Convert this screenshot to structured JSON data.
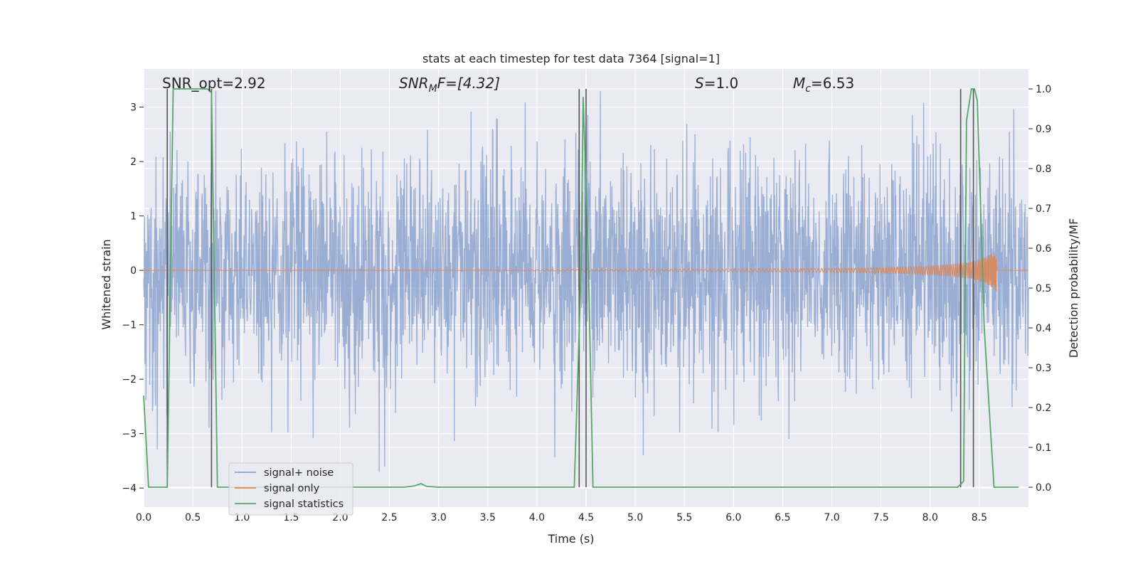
{
  "chart_data": {
    "type": "line",
    "title": "stats at each timestep for test data 7364 [signal=1]",
    "xlabel": "Time (s)",
    "ylabel_left": "Whitened strain",
    "ylabel_right": "Detection probability/MF",
    "xlim": [
      0.0,
      9.0
    ],
    "ylim_left": [
      -4.35,
      3.7
    ],
    "ylim_right": [
      -0.05,
      1.05
    ],
    "x_ticks": [
      "0.0",
      "0.5",
      "1.0",
      "1.5",
      "2.0",
      "2.5",
      "3.0",
      "3.5",
      "4.0",
      "4.5",
      "5.0",
      "5.5",
      "6.0",
      "6.5",
      "7.0",
      "7.5",
      "8.0",
      "8.5"
    ],
    "y_left_ticks": [
      "−4",
      "−3",
      "−2",
      "−1",
      "0",
      "1",
      "2",
      "3"
    ],
    "y_right_ticks": [
      "0.0",
      "0.1",
      "0.2",
      "0.3",
      "0.4",
      "0.5",
      "0.6",
      "0.7",
      "0.8",
      "0.9",
      "1.0"
    ],
    "grid": true,
    "legend_position": "lower-left",
    "annotations": {
      "snr_opt": "SNR_opt=2.92",
      "snr_mf_main": "SNR",
      "snr_mf_sub": "M",
      "snr_mf_rest": "F=[4.32]",
      "s_main": "S",
      "s_rest": "=1.0",
      "mc_main": "M",
      "mc_sub": "c",
      "mc_rest": "=6.53"
    },
    "series": [
      {
        "name": "signal+ noise",
        "color": "#8ca2cd",
        "description_of_values": "Gaussian-like whitened noise, amplitude mostly within ±2.5, peaks near ±3.3",
        "amplitude_typical": 2.3,
        "amplitude_max": 3.3
      },
      {
        "name": "signal only",
        "color": "#dd8452",
        "description_of_values": "Chirp, near zero until ~4.5 s, growing to about ±0.4 at ~8.68 s then ending",
        "end_time": 8.68,
        "peak_amplitude": 0.4
      },
      {
        "name": "signal statistics",
        "color": "#55a868",
        "axis": "right",
        "x": [
          0.0,
          0.05,
          0.24,
          0.3,
          0.5,
          0.65,
          0.69,
          0.75,
          1.0,
          2.5,
          2.65,
          2.75,
          2.82,
          2.88,
          3.0,
          4.0,
          4.38,
          4.45,
          4.47,
          4.52,
          4.57,
          4.65,
          5.0,
          6.0,
          7.0,
          8.0,
          8.28,
          8.34,
          8.37,
          8.42,
          8.45,
          8.48,
          8.55,
          8.65,
          8.9
        ],
        "y": [
          0.23,
          0.0,
          0.0,
          1.0,
          1.0,
          1.0,
          0.99,
          0.0,
          0.0,
          0.0,
          0.0,
          0.003,
          0.009,
          0.002,
          0.0,
          0.0,
          0.0,
          0.55,
          0.98,
          0.6,
          0.0,
          0.0,
          0.0,
          0.0,
          0.0,
          0.0,
          0.0,
          0.015,
          0.92,
          1.0,
          1.0,
          0.97,
          0.4,
          0.0,
          0.0
        ]
      }
    ],
    "vertical_markers": [
      {
        "x": 0.24,
        "color": "#555555"
      },
      {
        "x": 0.69,
        "color": "#555555"
      },
      {
        "x": 4.43,
        "color": "#555555"
      },
      {
        "x": 4.5,
        "color": "#555555"
      },
      {
        "x": 8.31,
        "color": "#555555"
      },
      {
        "x": 8.44,
        "color": "#555555"
      }
    ],
    "colors": {
      "axes_bg": "#eaeaf2",
      "grid": "#ffffff",
      "text": "#262626"
    }
  }
}
